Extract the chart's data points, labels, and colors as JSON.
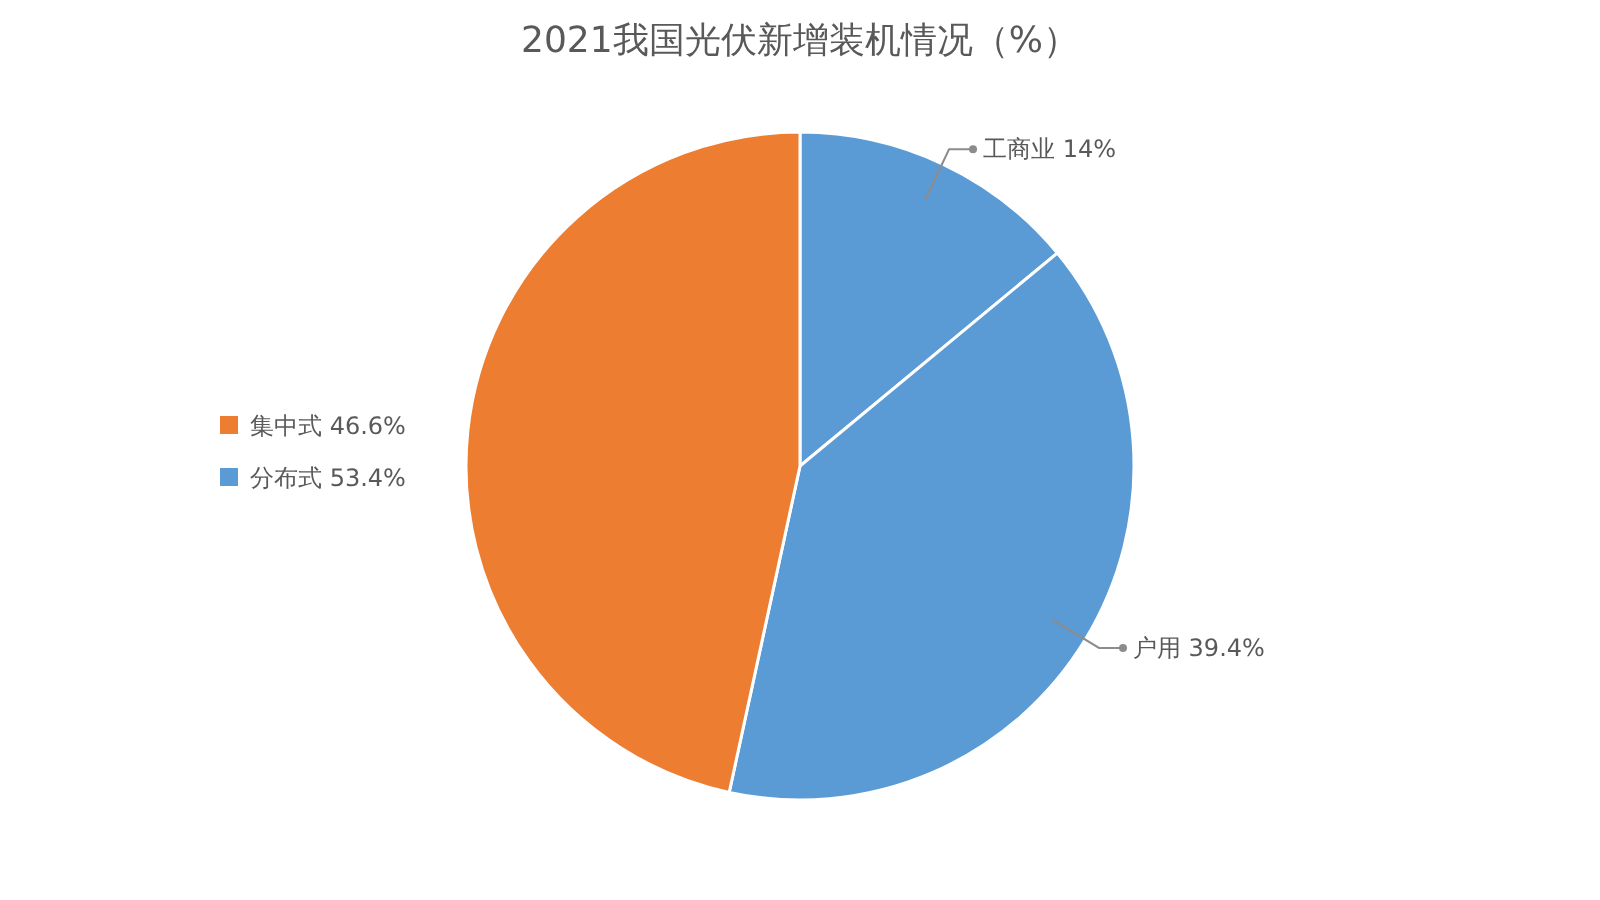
{
  "chart_data": {
    "type": "pie",
    "title": "2021我国光伏新增装机情况（%）",
    "categories": [
      "工商业",
      "户用",
      "集中式"
    ],
    "values": [
      14,
      39.4,
      46.6
    ],
    "colors": [
      "#5b9bd5",
      "#5b9bd5",
      "#ed7d31"
    ],
    "value_labels": [
      "14%",
      "39.4%",
      "46.6%"
    ],
    "annotations": [
      "分布式 53.4%"
    ]
  }
}
